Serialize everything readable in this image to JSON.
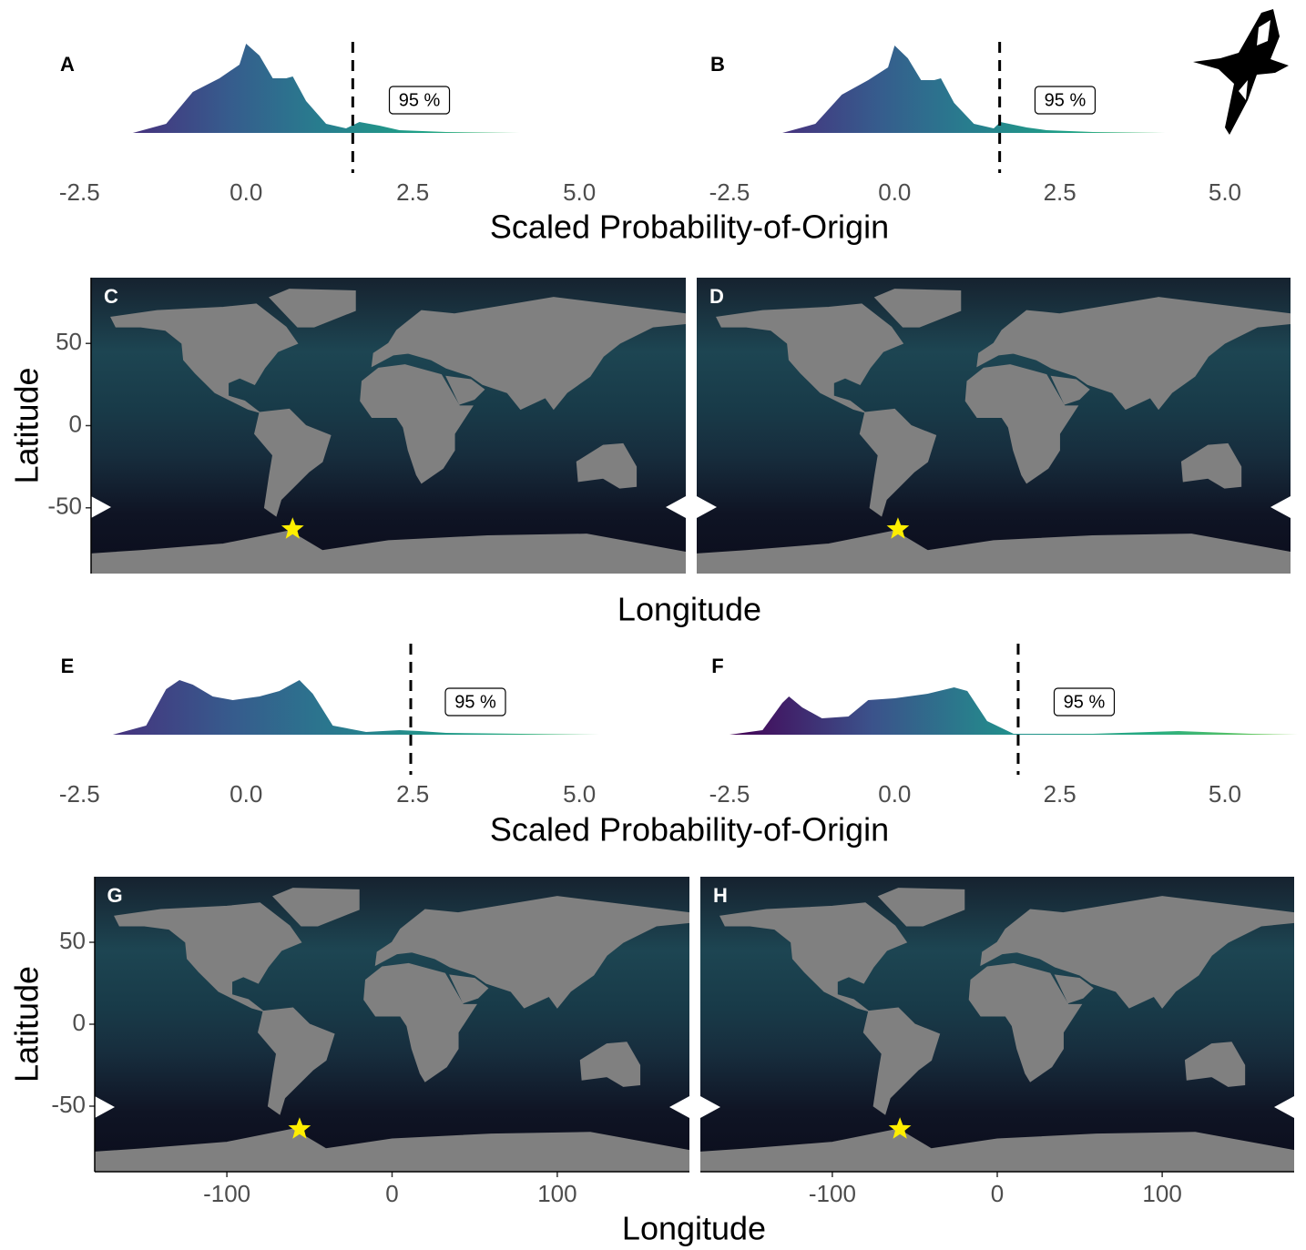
{
  "chart_data": [
    {
      "type": "density",
      "label": "A",
      "xlabel": "Scaled Probability-of-Origin",
      "x": [
        -1.7,
        -1.2,
        -0.8,
        -0.4,
        -0.1,
        0,
        0.2,
        0.4,
        0.6,
        0.7,
        0.9,
        1.2,
        1.5,
        1.7,
        2.0,
        2.3,
        3.0,
        4.1
      ],
      "values": [
        0,
        0.1,
        0.45,
        0.6,
        0.75,
        0.98,
        0.85,
        0.6,
        0.6,
        0.62,
        0.35,
        0.1,
        0.05,
        0.12,
        0.08,
        0.03,
        0.01,
        0
      ],
      "xlim": [
        -2.9,
        6.2
      ],
      "ylim": [
        0,
        1
      ],
      "xticks": [
        -2.5,
        {
          "value": 0,
          "label": "0.0"
        },
        2.5,
        {
          "value": 5,
          "label": "5.0"
        }
      ],
      "threshold": 1.6,
      "annotation": {
        "text": "95 %",
        "x": 2.6,
        "y": 0.36
      },
      "colors": [
        "#46327e",
        "#365c8d",
        "#277f8e",
        "#1fa187",
        "#4ac16d"
      ]
    },
    {
      "type": "density",
      "label": "B",
      "x": [
        -1.7,
        -1.2,
        -0.8,
        -0.4,
        -0.1,
        0,
        0.2,
        0.4,
        0.6,
        0.7,
        0.9,
        1.2,
        1.5,
        1.6,
        2.0,
        2.3,
        3.0,
        4.1
      ],
      "values": [
        0,
        0.1,
        0.42,
        0.58,
        0.72,
        0.96,
        0.82,
        0.58,
        0.58,
        0.6,
        0.33,
        0.1,
        0.05,
        0.12,
        0.06,
        0.03,
        0.01,
        0
      ],
      "xlim": [
        -2.9,
        6.2
      ],
      "ylim": [
        0,
        1
      ],
      "xticks": [
        -2.5,
        {
          "value": 0,
          "label": "0.0"
        },
        2.5,
        {
          "value": 5,
          "label": "5.0"
        }
      ],
      "threshold": 1.59,
      "annotation": {
        "text": "95 %",
        "x": 2.58,
        "y": 0.36
      },
      "colors": [
        "#46327e",
        "#365c8d",
        "#277f8e",
        "#1fa187",
        "#4ac16d"
      ]
    },
    {
      "type": "map",
      "label": "C",
      "xlabel": "Longitude",
      "ylabel": "Latitude",
      "xlim": [
        -180,
        180
      ],
      "ylim": [
        -90,
        90
      ],
      "yticks": [
        -50,
        0,
        50
      ],
      "points": {
        "x": [
          -58
        ],
        "y": [
          -63
        ]
      },
      "point_color": "#ffee00"
    },
    {
      "type": "map",
      "label": "D",
      "xlim": [
        -180,
        180
      ],
      "ylim": [
        -90,
        90
      ],
      "points": {
        "x": [
          -58
        ],
        "y": [
          -63
        ]
      },
      "point_color": "#ffee00"
    },
    {
      "type": "density",
      "label": "E",
      "xlabel": "Scaled Probability-of-Origin",
      "x": [
        -2.0,
        -1.5,
        -1.2,
        -1.0,
        -0.8,
        -0.5,
        -0.2,
        0.2,
        0.5,
        0.8,
        1.0,
        1.3,
        1.8,
        2.3,
        2.6,
        3.0,
        5.3
      ],
      "values": [
        0,
        0.1,
        0.5,
        0.6,
        0.55,
        0.42,
        0.38,
        0.42,
        0.48,
        0.6,
        0.45,
        0.1,
        0.03,
        0.05,
        0.04,
        0.02,
        0
      ],
      "xlim": [
        -2.9,
        6.2
      ],
      "ylim": [
        0,
        1
      ],
      "xticks": [
        -2.5,
        {
          "value": 0,
          "label": "0.0"
        },
        2.5,
        {
          "value": 5,
          "label": "5.0"
        }
      ],
      "threshold": 2.47,
      "annotation": {
        "text": "95 %",
        "x": 3.44,
        "y": 0.36
      },
      "colors": [
        "#46327e",
        "#365c8d",
        "#277f8e",
        "#1fa187",
        "#4ac16d"
      ]
    },
    {
      "type": "density",
      "label": "F",
      "x": [
        -2.5,
        -2.0,
        -1.7,
        -1.6,
        -1.4,
        -1.1,
        -0.7,
        -0.4,
        0,
        0.5,
        0.9,
        1.1,
        1.4,
        1.8,
        3.0,
        4.3,
        5.4,
        6.1
      ],
      "values": [
        0,
        0.05,
        0.35,
        0.42,
        0.3,
        0.18,
        0.2,
        0.38,
        0.4,
        0.45,
        0.52,
        0.48,
        0.15,
        0.01,
        0.01,
        0.04,
        0.01,
        0
      ],
      "xlim": [
        -2.9,
        6.2
      ],
      "ylim": [
        0,
        1
      ],
      "xticks": [
        -2.5,
        {
          "value": 0,
          "label": "0.0"
        },
        2.5,
        {
          "value": 5,
          "label": "5.0"
        }
      ],
      "threshold": 1.87,
      "annotation": {
        "text": "95 %",
        "x": 2.87,
        "y": 0.36
      },
      "colors": [
        "#440154",
        "#3b528b",
        "#21908c",
        "#27ad81",
        "#7ad151"
      ]
    },
    {
      "type": "map",
      "label": "G",
      "xlabel": "Longitude",
      "ylabel": "Latitude",
      "xlim": [
        -180,
        180
      ],
      "ylim": [
        -90,
        90
      ],
      "yticks": [
        -50,
        0,
        50
      ],
      "xticks": [
        -100,
        0,
        100
      ],
      "points": {
        "x": [
          -56
        ],
        "y": [
          -64
        ]
      },
      "point_color": "#ffee00"
    },
    {
      "type": "map",
      "label": "H",
      "xlim": [
        -180,
        180
      ],
      "ylim": [
        -90,
        90
      ],
      "xticks": [
        -100,
        0,
        100
      ],
      "points": {
        "x": [
          -59
        ],
        "y": [
          -64
        ]
      },
      "point_color": "#ffee00"
    }
  ]
}
